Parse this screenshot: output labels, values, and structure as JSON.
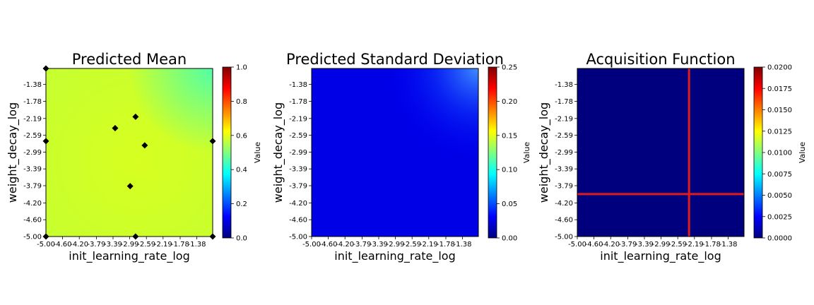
{
  "colors": {
    "jet": [
      "#00007f",
      "#0000ff",
      "#007fff",
      "#00ffff",
      "#7fff7f",
      "#ffff00",
      "#ff7f00",
      "#ff0000",
      "#7f0000"
    ],
    "marker": "#000000",
    "acq_line": "#e31a1c"
  },
  "chart_data": [
    {
      "type": "heatmap",
      "title": "Predicted Mean",
      "xlabel": "init_learning_rate_log",
      "ylabel": "weight_decay_log",
      "xticks": [
        "-5.00",
        "-4.60",
        "-4.20",
        "-3.79",
        "-3.39",
        "-2.99",
        "-2.59",
        "-2.19",
        "-1.78",
        "-1.38"
      ],
      "yticks": [
        "-1.38",
        "-1.78",
        "-2.19",
        "-2.59",
        "-2.99",
        "-3.39",
        "-3.79",
        "-4.20",
        "-4.60",
        "-5.00"
      ],
      "xlim": [
        -5.0,
        -1.0
      ],
      "ylim": [
        -5.0,
        -1.0
      ],
      "surface": {
        "description_values": [
          [
            0.68,
            0.62
          ],
          [
            0.6,
            0.56
          ]
        ],
        "center_peak": 0.6,
        "corner_min": 0.48
      },
      "colorbar": {
        "label": "Value",
        "ticks": [
          "0.0",
          "0.2",
          "0.4",
          "0.6",
          "0.8",
          "1.0"
        ],
        "range": [
          0,
          1
        ]
      },
      "points": [
        {
          "x": -5.0,
          "y": -1.0
        },
        {
          "x": -5.0,
          "y": -2.73
        },
        {
          "x": -5.0,
          "y": -5.0
        },
        {
          "x": -3.34,
          "y": -2.42
        },
        {
          "x": -2.85,
          "y": -2.15
        },
        {
          "x": -2.63,
          "y": -2.83
        },
        {
          "x": -2.98,
          "y": -3.8
        },
        {
          "x": -2.85,
          "y": -5.0
        },
        {
          "x": -1.0,
          "y": -2.73
        },
        {
          "x": -1.0,
          "y": -5.0
        }
      ]
    },
    {
      "type": "heatmap",
      "title": "Predicted Standard Deviation",
      "xlabel": "init_learning_rate_log",
      "ylabel": "weight_decay_log",
      "xticks": [
        "-5.00",
        "-4.60",
        "-4.20",
        "-3.79",
        "-3.39",
        "-2.99",
        "-2.59",
        "-2.19",
        "-1.78",
        "-1.38"
      ],
      "yticks": [
        "-1.38",
        "-1.78",
        "-2.19",
        "-2.59",
        "-2.99",
        "-3.39",
        "-3.79",
        "-4.20",
        "-4.60",
        "-5.00"
      ],
      "xlim": [
        -5.0,
        -1.0
      ],
      "ylim": [
        -5.0,
        -1.0
      ],
      "surface": {
        "base": 0.015,
        "top_right_max": 0.07
      },
      "colorbar": {
        "label": "Value",
        "ticks": [
          "0.00",
          "0.05",
          "0.10",
          "0.15",
          "0.20",
          "0.25"
        ],
        "range": [
          0,
          0.25
        ]
      }
    },
    {
      "type": "heatmap",
      "title": "Acquisition Function",
      "xlabel": "init_learning_rate_log",
      "ylabel": "weight_decay_log",
      "xticks": [
        "-5.00",
        "-4.60",
        "-4.20",
        "-3.79",
        "-3.39",
        "-2.99",
        "-2.59",
        "-2.19",
        "-1.78",
        "-1.38"
      ],
      "yticks": [
        "-1.38",
        "-1.78",
        "-2.19",
        "-2.59",
        "-2.99",
        "-3.39",
        "-3.79",
        "-4.20",
        "-4.60",
        "-5.00"
      ],
      "xlim": [
        -5.0,
        -1.0
      ],
      "ylim": [
        -5.0,
        -1.0
      ],
      "surface": {
        "value": 0.0
      },
      "selected": {
        "x": -2.32,
        "y": -3.99
      },
      "colorbar": {
        "label": "Value",
        "ticks": [
          "0.0000",
          "0.0025",
          "0.0050",
          "0.0075",
          "0.0100",
          "0.0125",
          "0.0150",
          "0.0175",
          "0.0200"
        ],
        "range": [
          0,
          0.02
        ]
      }
    }
  ]
}
